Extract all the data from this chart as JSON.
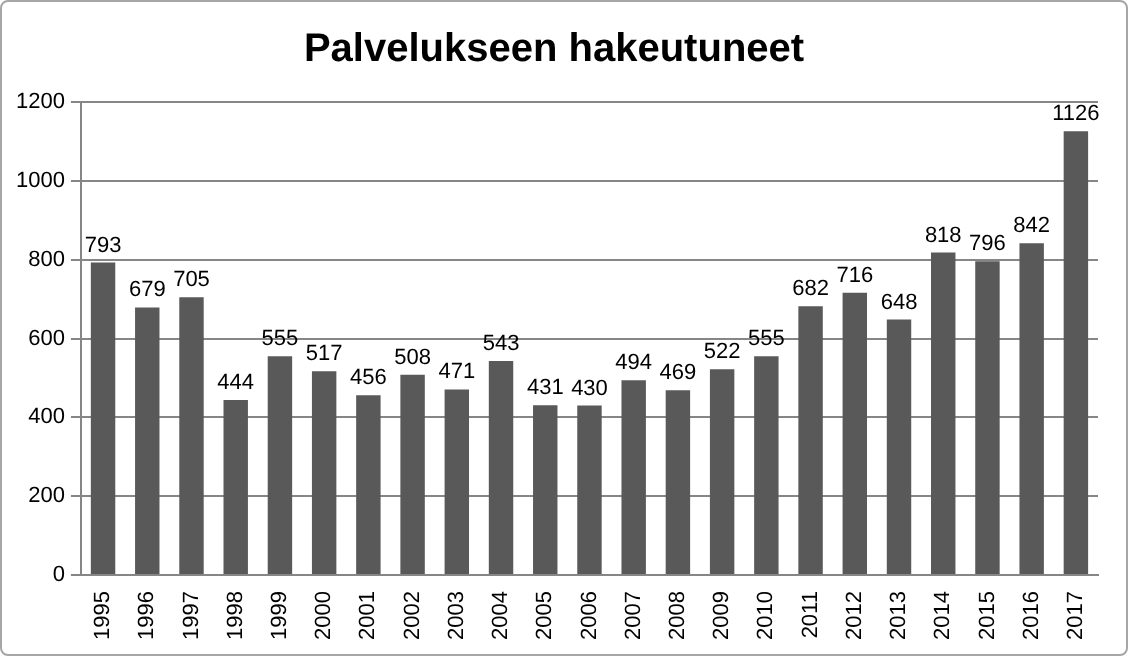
{
  "chart_data": {
    "type": "bar",
    "title": "Palvelukseen hakeutuneet",
    "categories": [
      "1995",
      "1996",
      "1997",
      "1998",
      "1999",
      "2000",
      "2001",
      "2002",
      "2003",
      "2004",
      "2005",
      "2006",
      "2007",
      "2008",
      "2009",
      "2010",
      "2011",
      "2012",
      "2013",
      "2014",
      "2015",
      "2016",
      "2017"
    ],
    "values": [
      793,
      679,
      705,
      444,
      555,
      517,
      456,
      508,
      471,
      543,
      431,
      430,
      494,
      469,
      522,
      555,
      682,
      716,
      648,
      818,
      796,
      842,
      1126
    ],
    "color": "#595959",
    "ylim": [
      0,
      1200
    ],
    "yticks": [
      0,
      200,
      400,
      600,
      800,
      1000,
      1200
    ],
    "grid": "y",
    "data_labels": true
  }
}
